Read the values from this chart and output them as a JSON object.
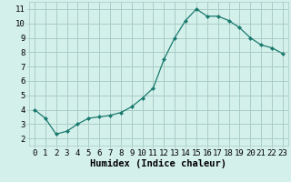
{
  "x": [
    0,
    1,
    2,
    3,
    4,
    5,
    6,
    7,
    8,
    9,
    10,
    11,
    12,
    13,
    14,
    15,
    16,
    17,
    18,
    19,
    20,
    21,
    22,
    23
  ],
  "y": [
    4.0,
    3.4,
    2.3,
    2.5,
    3.0,
    3.4,
    3.5,
    3.6,
    3.8,
    4.2,
    4.8,
    5.5,
    7.5,
    9.0,
    10.2,
    11.0,
    10.5,
    10.5,
    10.2,
    9.7,
    9.0,
    8.5,
    8.3,
    7.9
  ],
  "line_color": "#1a7a6e",
  "marker": "D",
  "marker_size": 2.0,
  "bg_color": "#d4f0eb",
  "grid_color": "#aaccc6",
  "xlabel": "Humidex (Indice chaleur)",
  "xlabel_fontsize": 7.5,
  "tick_fontsize": 6.5,
  "xlim": [
    -0.5,
    23.5
  ],
  "ylim": [
    1.5,
    11.5
  ],
  "yticks": [
    2,
    3,
    4,
    5,
    6,
    7,
    8,
    9,
    10,
    11
  ],
  "xticks": [
    0,
    1,
    2,
    3,
    4,
    5,
    6,
    7,
    8,
    9,
    10,
    11,
    12,
    13,
    14,
    15,
    16,
    17,
    18,
    19,
    20,
    21,
    22,
    23
  ]
}
